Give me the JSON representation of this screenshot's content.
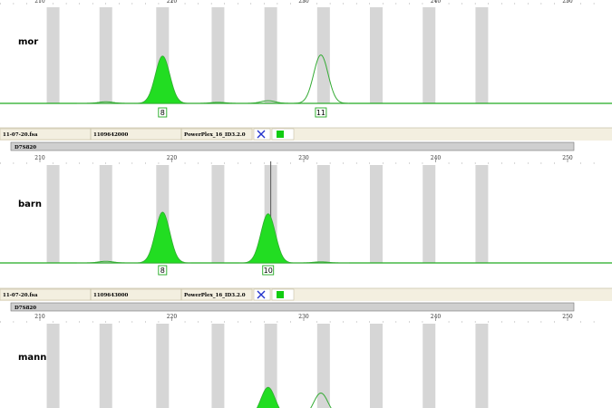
{
  "colors": {
    "peak_fill": "#22dd22",
    "peak_line": "#33aa33",
    "bin": "#d6d6d6",
    "baseline": "#22aa22",
    "info_bar": "#f3efe0",
    "marker_bar": "#cfcfcf",
    "x_icon": "#2233cc",
    "green_square": "#11cc11"
  },
  "chart_data": [
    {
      "type": "area",
      "sample_label": "mor",
      "x_range": [
        195,
        253
      ],
      "x_ticks": [
        210,
        220,
        230,
        240,
        250
      ],
      "bins": [
        211,
        215,
        219.3,
        223.5,
        227.5,
        231.5,
        235.5,
        239.5,
        243.5
      ],
      "peaks": [
        {
          "x": 219.3,
          "height": 0.9,
          "filled": true
        },
        {
          "x": 231.3,
          "height": 0.92,
          "filled": false
        },
        {
          "x": 215,
          "height": 0.03,
          "filled": false
        },
        {
          "x": 223.5,
          "height": 0.02,
          "filled": false
        },
        {
          "x": 227.3,
          "height": 0.05,
          "filled": false
        }
      ],
      "alleles": [
        {
          "x": 219.3,
          "label": "8"
        },
        {
          "x": 231.3,
          "label": "11"
        }
      ]
    },
    {
      "type": "area",
      "sample_label": "barn",
      "x_range": [
        195,
        253
      ],
      "x_ticks": [
        210,
        220,
        230,
        240,
        250
      ],
      "bins": [
        211,
        215,
        219.3,
        223.5,
        227.5,
        231.5,
        235.5,
        239.5,
        243.5
      ],
      "cursor_x": 227.5,
      "peaks": [
        {
          "x": 219.3,
          "height": 0.95,
          "filled": true
        },
        {
          "x": 227.3,
          "height": 0.92,
          "filled": true
        },
        {
          "x": 215,
          "height": 0.03,
          "filled": false
        },
        {
          "x": 231.3,
          "height": 0.02,
          "filled": false
        }
      ],
      "alleles": [
        {
          "x": 219.3,
          "label": "8"
        },
        {
          "x": 227.3,
          "label": "10"
        }
      ]
    },
    {
      "type": "area",
      "sample_label": "mann",
      "x_range": [
        195,
        253
      ],
      "x_ticks": [
        210,
        220,
        230,
        240,
        250
      ],
      "bins": [
        211,
        215,
        219.3,
        223.5,
        227.5,
        231.5,
        235.5,
        239.5,
        243.5
      ],
      "peaks": [
        {
          "x": 227.3,
          "height": 0.62,
          "filled": true
        },
        {
          "x": 231.3,
          "height": 0.5,
          "filled": false
        }
      ],
      "alleles": []
    }
  ],
  "info_rows": [
    {
      "file": "11-07-20.fsa",
      "id": "1109642000",
      "kit": "PowerPlex_16_ID3.2.0",
      "marker": "D7S820"
    },
    {
      "file": "11-07-20.fsa",
      "id": "1109643000",
      "kit": "PowerPlex_16_ID3.2.0",
      "marker": "D7S820"
    }
  ]
}
